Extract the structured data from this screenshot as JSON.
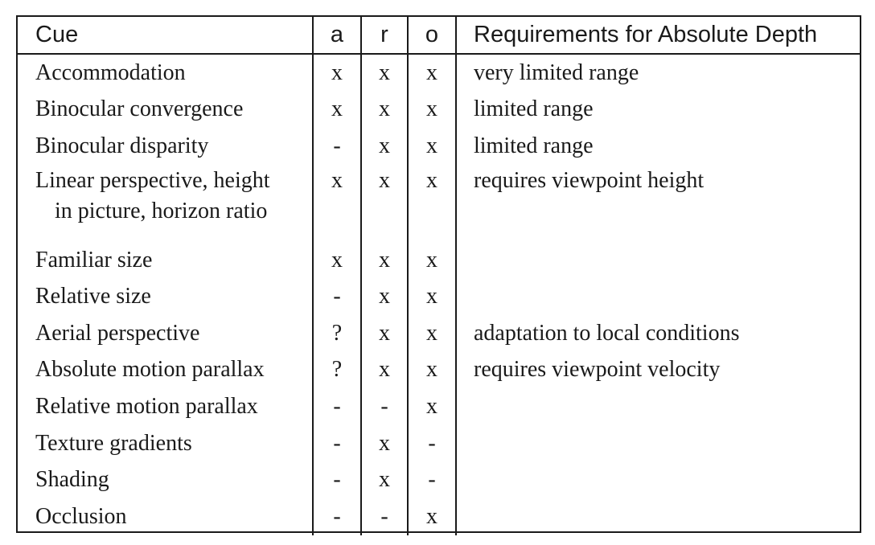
{
  "table": {
    "headers": {
      "cue": "Cue",
      "a": "a",
      "r": "r",
      "o": "o",
      "requirements": "Requirements for Absolute Depth"
    },
    "rows": [
      {
        "cue": "Accommodation",
        "cue_cont": "",
        "a": "x",
        "r": "x",
        "o": "x",
        "req": "very limited range"
      },
      {
        "cue": "Binocular convergence",
        "cue_cont": "",
        "a": "x",
        "r": "x",
        "o": "x",
        "req": "limited range"
      },
      {
        "cue": "Binocular disparity",
        "cue_cont": "",
        "a": "-",
        "r": "x",
        "o": "x",
        "req": "limited range"
      },
      {
        "cue": "Linear perspective, height",
        "cue_cont": "in picture, horizon ratio",
        "a": "x",
        "r": "x",
        "o": "x",
        "req": "requires viewpoint height"
      },
      {
        "cue": "Familiar size",
        "cue_cont": "",
        "a": "x",
        "r": "x",
        "o": "x",
        "req": ""
      },
      {
        "cue": "Relative size",
        "cue_cont": "",
        "a": "-",
        "r": "x",
        "o": "x",
        "req": ""
      },
      {
        "cue": "Aerial perspective",
        "cue_cont": "",
        "a": "?",
        "r": "x",
        "o": "x",
        "req": "adaptation to local conditions"
      },
      {
        "cue": "Absolute motion parallax",
        "cue_cont": "",
        "a": "?",
        "r": "x",
        "o": "x",
        "req": "requires viewpoint velocity"
      },
      {
        "cue": "Relative motion parallax",
        "cue_cont": "",
        "a": "-",
        "r": "-",
        "o": "x",
        "req": ""
      },
      {
        "cue": "Texture gradients",
        "cue_cont": "",
        "a": "-",
        "r": "x",
        "o": "-",
        "req": ""
      },
      {
        "cue": "Shading",
        "cue_cont": "",
        "a": "-",
        "r": "x",
        "o": "-",
        "req": ""
      },
      {
        "cue": "Occlusion",
        "cue_cont": "",
        "a": "-",
        "r": "-",
        "o": "x",
        "req": ""
      }
    ]
  }
}
